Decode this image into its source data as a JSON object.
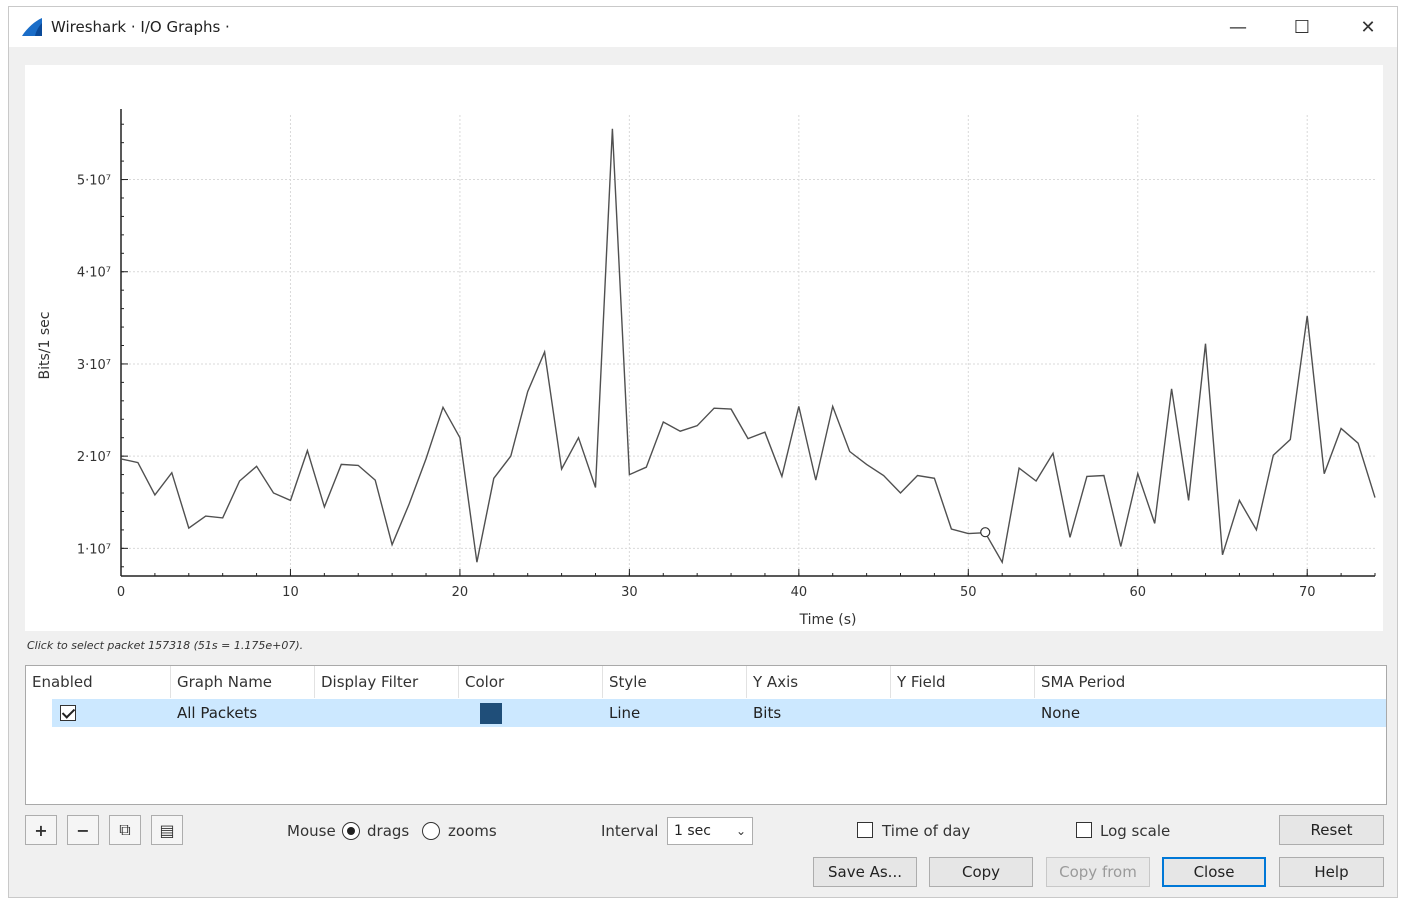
{
  "window": {
    "title": "Wireshark · I/O Graphs ·",
    "controls": {
      "minimize": "—",
      "maximize": "☐",
      "close": "✕"
    }
  },
  "chart_data": {
    "type": "line",
    "xlabel": "Time (s)",
    "ylabel": "Bits/1 sec",
    "xlim": [
      0,
      74
    ],
    "ylim": [
      7000000,
      57000000
    ],
    "x_ticks": [
      0,
      10,
      20,
      30,
      40,
      50,
      60,
      70
    ],
    "y_ticks": [
      10000000,
      20000000,
      30000000,
      40000000,
      50000000
    ],
    "y_tick_labels": [
      "1·10⁷",
      "2·10⁷",
      "3·10⁷",
      "4·10⁷",
      "5·10⁷"
    ],
    "grid": true,
    "color": "#505050",
    "marker": {
      "x": 51,
      "y": 11750000
    },
    "series": [
      {
        "name": "All Packets",
        "x": [
          0,
          1,
          2,
          3,
          4,
          5,
          6,
          7,
          8,
          9,
          10,
          11,
          12,
          13,
          14,
          15,
          16,
          17,
          18,
          19,
          20,
          21,
          22,
          23,
          24,
          25,
          26,
          27,
          28,
          29,
          30,
          31,
          32,
          33,
          34,
          35,
          36,
          37,
          38,
          39,
          40,
          41,
          42,
          43,
          44,
          45,
          46,
          47,
          48,
          49,
          50,
          51,
          52,
          53,
          54,
          55,
          56,
          57,
          58,
          59,
          60,
          61,
          62,
          63,
          64,
          65,
          66,
          67,
          68,
          69,
          70,
          71,
          72,
          73,
          74
        ],
        "values": [
          19700000.0,
          19300000.0,
          15800000.0,
          18200000.0,
          12200000.0,
          13500000.0,
          13300000.0,
          17300000.0,
          18900000.0,
          16000000.0,
          15200000.0,
          20600000.0,
          14500000.0,
          19100000.0,
          19000000.0,
          17400000.0,
          10400000.0,
          14800000.0,
          19700000.0,
          25300000.0,
          22000000.0,
          8500000.0,
          17600000.0,
          20000000.0,
          27000000.0,
          31300000.0,
          18600000.0,
          22000000.0,
          16600000.0,
          55500000.0,
          18000000.0,
          18800000.0,
          23700000.0,
          22700000.0,
          23300000.0,
          25200000.0,
          25100000.0,
          21900000.0,
          22600000.0,
          17800000.0,
          25400000.0,
          17400000.0,
          25400000.0,
          20500000.0,
          19100000.0,
          17900000.0,
          16000000.0,
          17900000.0,
          17600000.0,
          12100000.0,
          11600000.0,
          11700000.0,
          8500000.0,
          18700000.0,
          17300000.0,
          20300000.0,
          11200000.0,
          17800000.0,
          17900000.0,
          10200000.0,
          18100000.0,
          12700000.0,
          27300000.0,
          15200000.0,
          32200000.0,
          9300000.0,
          15200000.0,
          12000000.0,
          20100000.0,
          21800000.0,
          35200000.0,
          18100000.0,
          23000000.0,
          21400000.0,
          15500000.0
        ]
      }
    ]
  },
  "hint": "Click to select packet 157318 (51s = 1.175e+07).",
  "graphs_table": {
    "columns": [
      "Enabled",
      "Graph Name",
      "Display Filter",
      "Color",
      "Style",
      "Y Axis",
      "Y Field",
      "SMA Period"
    ],
    "rows": [
      {
        "enabled": true,
        "graph_name": "All Packets",
        "display_filter": "",
        "color": "#1f4e79",
        "style": "Line",
        "y_axis": "Bits",
        "y_field": "",
        "sma_period": "None"
      }
    ]
  },
  "toolbar": {
    "add": "+",
    "remove": "−",
    "copy": "⧉",
    "clear": "▤"
  },
  "mouse": {
    "label": "Mouse",
    "drags": "drags",
    "zooms": "zooms",
    "selected": "drags"
  },
  "interval": {
    "label": "Interval",
    "value": "1 sec"
  },
  "time_of_day": {
    "label": "Time of day",
    "checked": false
  },
  "log_scale": {
    "label": "Log scale",
    "checked": false
  },
  "buttons": {
    "reset": "Reset",
    "save_as": "Save As...",
    "copy": "Copy",
    "copy_from": "Copy from",
    "close": "Close",
    "help": "Help"
  }
}
